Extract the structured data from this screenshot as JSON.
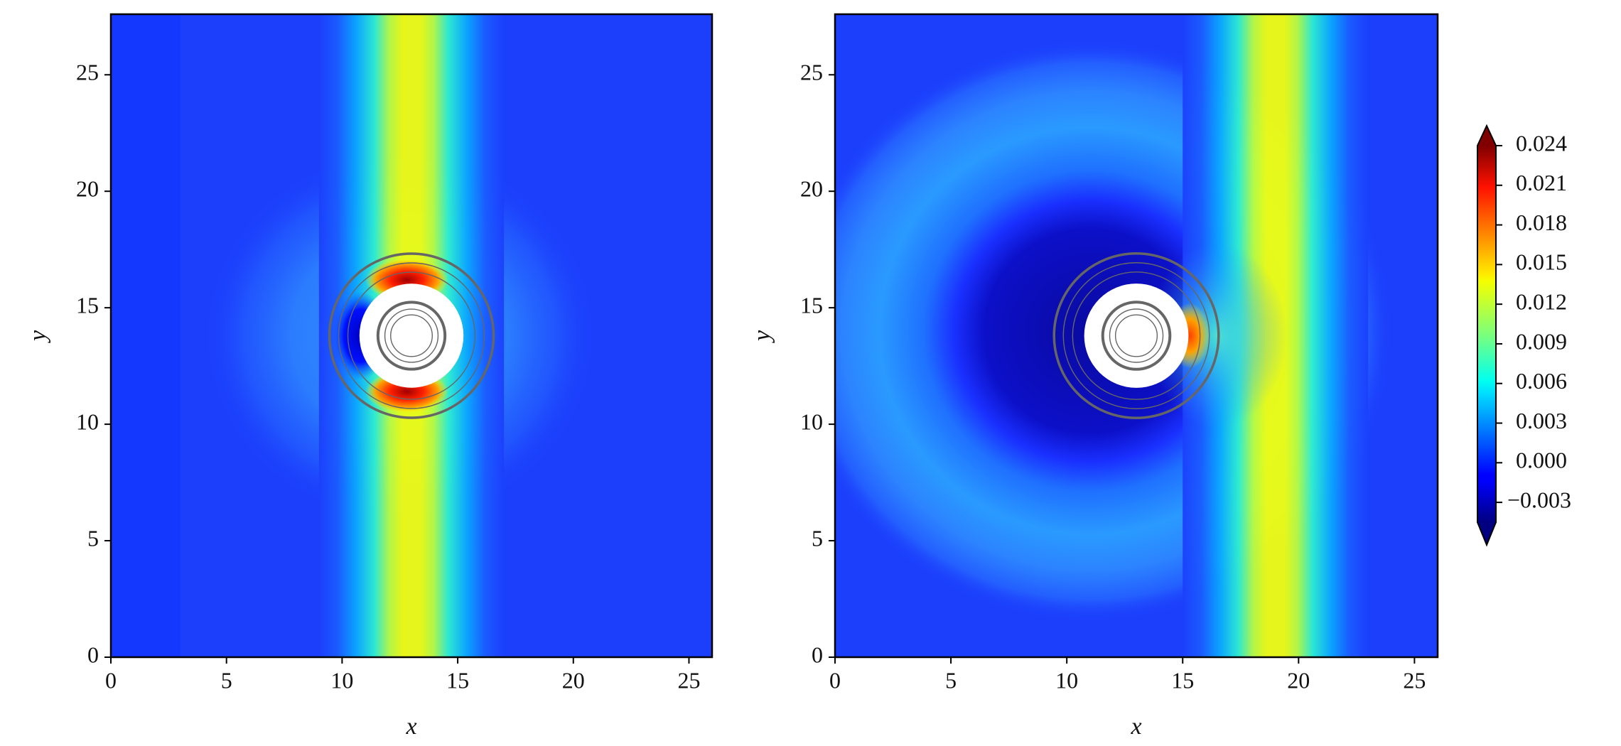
{
  "chart_data": [
    {
      "type": "contour",
      "x_label": "x",
      "y_label": "y",
      "xlim": [
        0,
        26
      ],
      "ylim": [
        0,
        27.6
      ],
      "xticks": [
        0,
        5,
        10,
        15,
        20,
        25
      ],
      "yticks": [
        0,
        5,
        10,
        15,
        20,
        25
      ]
    },
    {
      "type": "contour",
      "x_label": "x",
      "y_label": "y",
      "xlim": [
        0,
        26
      ],
      "ylim": [
        0,
        27.6
      ],
      "xticks": [
        0,
        5,
        10,
        15,
        20,
        25
      ],
      "yticks": [
        0,
        5,
        10,
        15,
        20,
        25
      ]
    }
  ],
  "colorbar": {
    "colormap": "jet",
    "extend": "both",
    "lim": [
      -0.0045,
      0.024
    ],
    "ticks": [
      0.024,
      0.021,
      0.018,
      0.015,
      0.012,
      0.009,
      0.006,
      0.003,
      {
        "value": 0,
        "label": "0.000"
      },
      {
        "value": -0.003,
        "label": "−0.003"
      }
    ]
  }
}
